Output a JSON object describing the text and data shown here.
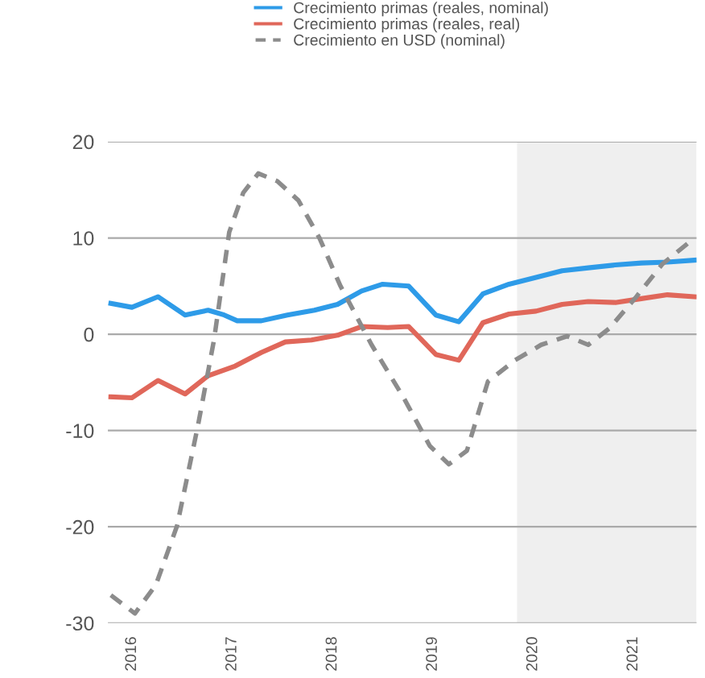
{
  "chart_data": {
    "type": "line",
    "xlim": [
      2015.76,
      2021.63
    ],
    "xticks": [
      2016,
      2017,
      2018,
      2019,
      2020,
      2021
    ],
    "ylim": [
      -30,
      20
    ],
    "yticks": [
      -30,
      -20,
      -10,
      0,
      10,
      20
    ],
    "grid": "y",
    "legend": "top",
    "line_style": "solid",
    "marker": "none",
    "bands": [
      {
        "axis": "x",
        "from": 2019.84,
        "to": 2021.63,
        "color": "#efefef"
      }
    ],
    "series": [
      {
        "name": "Crecimiento primas (reales, nominal)",
        "color": "#2e9be8",
        "x": [
          2015.79,
          2016.0,
          2016.26,
          2016.53,
          2016.76,
          2016.92,
          2017.05,
          2017.29,
          2017.55,
          2017.82,
          2018.05,
          2018.29,
          2018.5,
          2018.76,
          2019.03,
          2019.26,
          2019.5,
          2019.76,
          2020.03,
          2020.29,
          2020.55,
          2020.82,
          2021.08,
          2021.34,
          2021.61
        ],
        "values": [
          3.2,
          2.8,
          3.9,
          2.0,
          2.5,
          2.0,
          1.4,
          1.4,
          2.0,
          2.5,
          3.1,
          4.5,
          5.2,
          5.0,
          2.0,
          1.3,
          4.2,
          5.2,
          5.9,
          6.6,
          6.9,
          7.2,
          7.4,
          7.5,
          7.7
        ]
      },
      {
        "name": "Crecimiento primas (reales, real)",
        "color": "#e0675a",
        "x": [
          2015.79,
          2016.0,
          2016.26,
          2016.53,
          2016.76,
          2017.03,
          2017.29,
          2017.53,
          2017.79,
          2018.05,
          2018.29,
          2018.55,
          2018.76,
          2019.03,
          2019.26,
          2019.5,
          2019.76,
          2020.03,
          2020.29,
          2020.55,
          2020.82,
          2021.08,
          2021.34,
          2021.61
        ],
        "values": [
          -6.5,
          -6.6,
          -4.8,
          -6.2,
          -4.3,
          -3.3,
          -1.9,
          -0.8,
          -0.6,
          -0.1,
          0.8,
          0.7,
          0.8,
          -2.1,
          -2.7,
          1.2,
          2.1,
          2.4,
          3.1,
          3.4,
          3.3,
          3.7,
          4.1,
          3.9
        ]
      },
      {
        "name": "Crecimiento en USD (nominal)",
        "color": "#8c8c8c",
        "line_style": "dashed",
        "x": [
          2015.79,
          2016.03,
          2016.24,
          2016.45,
          2016.66,
          2016.82,
          2016.97,
          2017.11,
          2017.26,
          2017.45,
          2017.66,
          2017.87,
          2018.08,
          2018.39,
          2018.71,
          2018.97,
          2019.16,
          2019.34,
          2019.55,
          2019.82,
          2020.08,
          2020.34,
          2020.55,
          2020.76,
          2021.03,
          2021.29,
          2021.61
        ],
        "values": [
          -27.1,
          -29.0,
          -26.0,
          -19.9,
          -9.4,
          -0.5,
          10.6,
          14.7,
          16.7,
          15.9,
          13.9,
          10.0,
          5.0,
          -1.1,
          -6.6,
          -11.6,
          -13.5,
          -12.1,
          -4.9,
          -2.7,
          -1.1,
          -0.2,
          -1.1,
          0.6,
          3.9,
          7.3,
          10.0
        ]
      }
    ]
  }
}
